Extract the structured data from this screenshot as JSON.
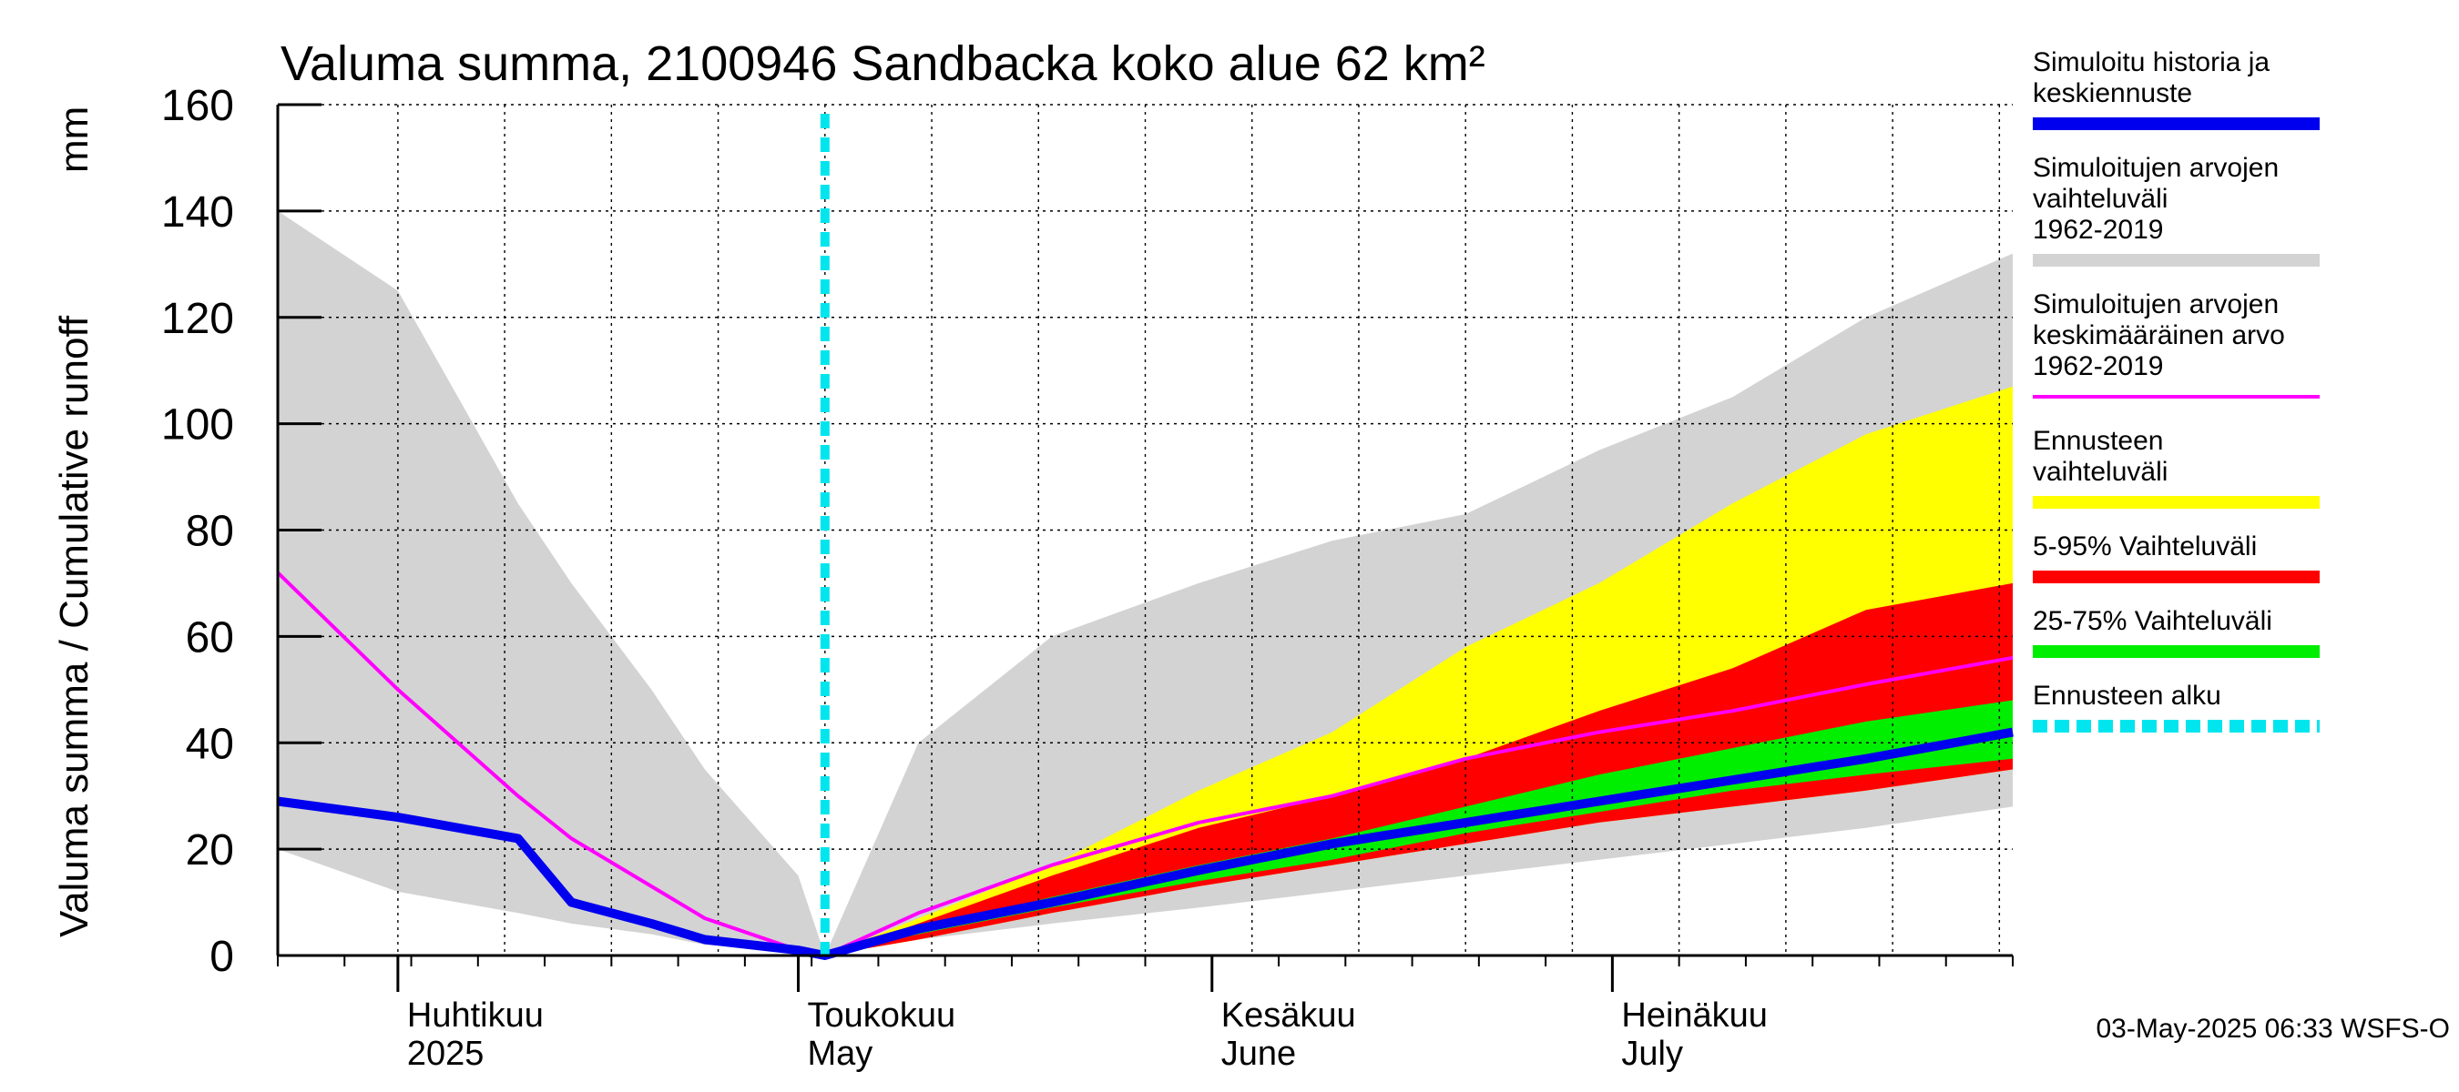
{
  "chart_data": {
    "type": "area",
    "title": "Valuma summa, 2100946 Sandbacka koko alue 62 km²",
    "ylabel": "Valuma summa / Cumulative runoff",
    "yunit": "mm",
    "ylim": [
      0,
      160
    ],
    "yticks": [
      "0",
      "20",
      "40",
      "60",
      "80",
      "100",
      "120",
      "140",
      "160"
    ],
    "xlim": [
      "2025-03-23",
      "2025-07-31"
    ],
    "grid": true,
    "forecast_start": "2025-05-03",
    "months": [
      {
        "date": "2025-04-01",
        "fi": "Huhtikuu",
        "en": "2025"
      },
      {
        "date": "2025-05-01",
        "fi": "Toukokuu",
        "en": "May"
      },
      {
        "date": "2025-06-01",
        "fi": "Kesäkuu",
        "en": "June"
      },
      {
        "date": "2025-07-01",
        "fi": "Heinäkuu",
        "en": "July"
      }
    ],
    "footer": "03-May-2025 06:33 WSFS-O",
    "x": [
      "2025-03-23",
      "2025-04-01",
      "2025-04-10",
      "2025-04-14",
      "2025-04-20",
      "2025-04-24",
      "2025-05-01",
      "2025-05-03",
      "2025-05-10",
      "2025-05-20",
      "2025-05-31",
      "2025-06-10",
      "2025-06-20",
      "2025-06-30",
      "2025-07-10",
      "2025-07-20",
      "2025-07-31"
    ],
    "series": [
      {
        "name": "Simuloitujen arvojen vaihteluväli 1962-2019",
        "color": "#d3d3d3",
        "low": [
          20,
          12,
          8,
          6,
          4,
          2,
          1,
          0,
          3,
          6,
          9,
          12,
          15,
          18,
          21,
          24,
          28
        ],
        "high": [
          140,
          125,
          85,
          70,
          50,
          35,
          15,
          0,
          40,
          60,
          70,
          78,
          83,
          95,
          105,
          120,
          132
        ]
      },
      {
        "name": "Ennusteen vaihteluväli",
        "color": "#ffff00",
        "low": [
          null,
          null,
          null,
          null,
          null,
          null,
          null,
          0,
          3,
          8,
          13,
          17,
          21,
          25,
          28,
          31,
          35
        ],
        "high": [
          null,
          null,
          null,
          null,
          null,
          null,
          null,
          0,
          7,
          17,
          31,
          42,
          58,
          70,
          85,
          98,
          107
        ]
      },
      {
        "name": "5-95% Vaihteluväli",
        "color": "#ff0000",
        "low": [
          null,
          null,
          null,
          null,
          null,
          null,
          null,
          0,
          3,
          8,
          13,
          17,
          21,
          25,
          28,
          31,
          35
        ],
        "high": [
          null,
          null,
          null,
          null,
          null,
          null,
          null,
          0,
          6,
          15,
          24,
          30,
          37,
          46,
          54,
          65,
          70
        ]
      },
      {
        "name": "25-75% Vaihteluväli",
        "color": "#00ee00",
        "low": [
          null,
          null,
          null,
          null,
          null,
          null,
          null,
          0,
          4,
          9,
          14,
          18,
          23,
          27,
          31,
          34,
          37
        ],
        "high": [
          null,
          null,
          null,
          null,
          null,
          null,
          null,
          0,
          5,
          11,
          17,
          22,
          28,
          34,
          39,
          44,
          48
        ]
      },
      {
        "name": "Simuloitujen arvojen keskimääräinen arvo 1962-2019",
        "color": "#ff00ff",
        "values": [
          72,
          50,
          30,
          22,
          13,
          7,
          1,
          0,
          8,
          17,
          25,
          30,
          37,
          42,
          46,
          51,
          56
        ]
      },
      {
        "name": "Simuloitu historia ja keskiennuste",
        "color": "#0000ee",
        "values": [
          29,
          26,
          22,
          10,
          6,
          3,
          1,
          0,
          5,
          10,
          16,
          21,
          25,
          29,
          33,
          37,
          42
        ]
      }
    ],
    "legend": {
      "placement": "right",
      "items": [
        {
          "label": "Simuloitu historia ja keskiennuste",
          "color": "#0000ee",
          "style": "thick"
        },
        {
          "label": "Simuloitujen arvojen vaihteluväli 1962-2019",
          "color": "#d3d3d3",
          "style": "thick"
        },
        {
          "label": "Simuloitujen arvojen keskimääräinen arvo 1962-2019",
          "color": "#ff00ff",
          "style": "thin"
        },
        {
          "label": "Ennusteen vaihteluväli",
          "color": "#ffff00",
          "style": "thick"
        },
        {
          "label": "5-95% Vaihteluväli",
          "color": "#ff0000",
          "style": "thick"
        },
        {
          "label": "25-75% Vaihteluväli",
          "color": "#00ee00",
          "style": "thick"
        },
        {
          "label": "Ennusteen alku",
          "color": "#00e5ee",
          "style": "dashed"
        }
      ]
    }
  }
}
